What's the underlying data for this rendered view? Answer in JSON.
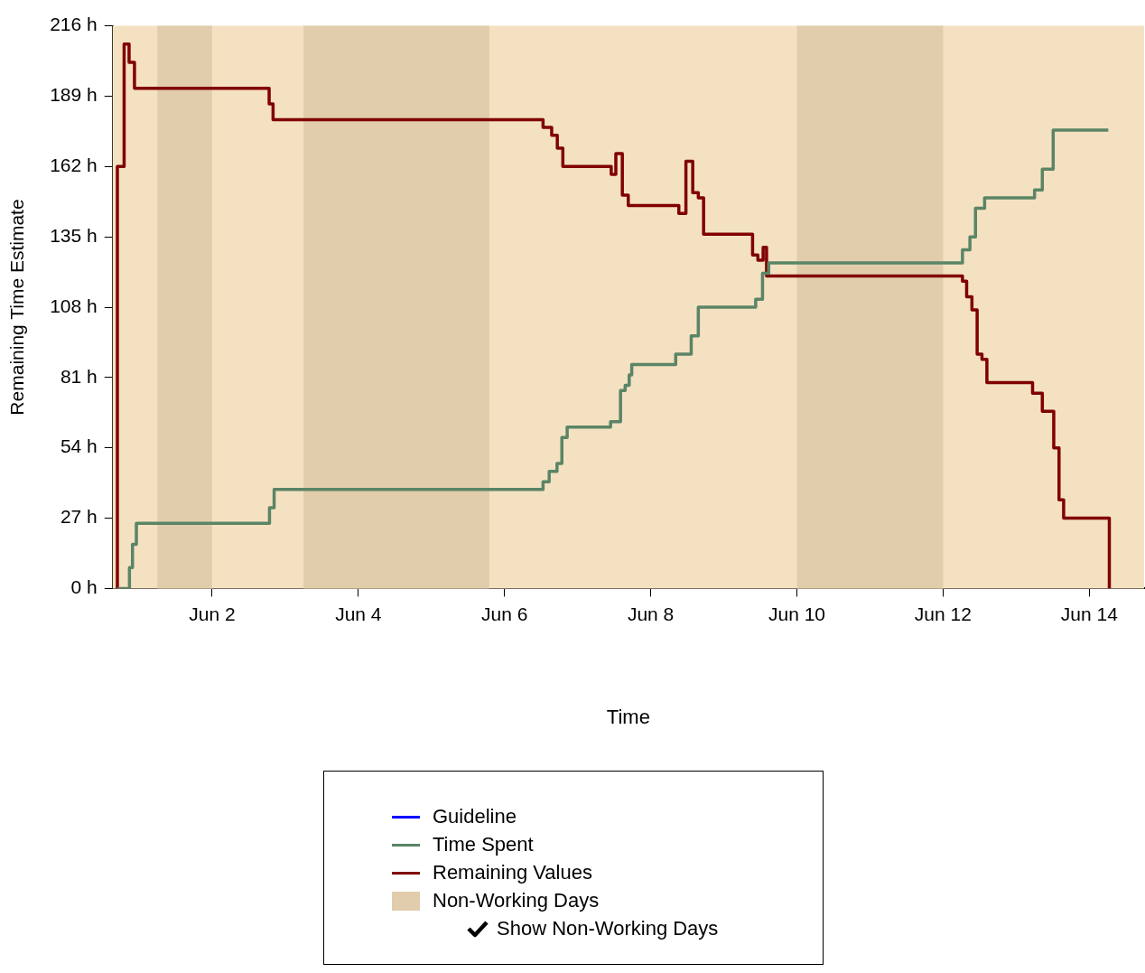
{
  "chart_data": {
    "type": "line",
    "xlabel": "Time",
    "ylabel": "Remaining Time Estimate",
    "xlim": [
      "--05-31T15:20",
      "--06-14T18:00"
    ],
    "xticks": [
      {
        "value": "--06-02",
        "label": "Jun 2"
      },
      {
        "value": "--06-04",
        "label": "Jun 4"
      },
      {
        "value": "--06-06",
        "label": "Jun 6"
      },
      {
        "value": "--06-08",
        "label": "Jun 8"
      },
      {
        "value": "--06-10",
        "label": "Jun 10"
      },
      {
        "value": "--06-12",
        "label": "Jun 12"
      },
      {
        "value": "--06-14",
        "label": "Jun 14"
      }
    ],
    "ylim": [
      0,
      216
    ],
    "yticks": [
      {
        "value": 0,
        "label": "0 h"
      },
      {
        "value": 27,
        "label": "27 h"
      },
      {
        "value": 54,
        "label": "54 h"
      },
      {
        "value": 81,
        "label": "81 h"
      },
      {
        "value": 108,
        "label": "108 h"
      },
      {
        "value": 135,
        "label": "135 h"
      },
      {
        "value": 162,
        "label": "162 h"
      },
      {
        "value": 189,
        "label": "189 h"
      },
      {
        "value": 216,
        "label": "216 h"
      }
    ],
    "legend": "bottom",
    "marker": "none",
    "bands": [
      {
        "axis": "x",
        "from": "--06-01T06:00",
        "to": "--06-02T00:00",
        "label": "Non-Working Days",
        "color": "#e1cdab"
      },
      {
        "axis": "x",
        "from": "--06-03T06:00",
        "to": "--06-05T19:00",
        "color": "#e1cdab"
      },
      {
        "axis": "x",
        "from": "--06-10T00:00",
        "to": "--06-12T00:00",
        "color": "#e1cdab"
      }
    ],
    "annotations": [
      "Show Non-Working Days"
    ],
    "series": [
      {
        "name": "Guideline",
        "type": "step",
        "color": "#0000ff"
      },
      {
        "name": "Time Spent",
        "type": "step",
        "color": "#5a8566",
        "x": [
          "--05-31T16:53",
          "--05-31T20:51",
          "--05-31T21:51",
          "--05-31T23:07",
          "--06-02T18:50",
          "--06-02T20:21",
          "--06-06T12:39",
          "--06-06T14:40",
          "--06-06T17:14",
          "--06-06T18:50",
          "--06-06T20:34",
          "--06-07T10:49",
          "--06-07T14:05",
          "--06-07T15:37",
          "--06-07T16:56",
          "--06-07T17:46",
          "--06-08T08:12",
          "--06-08T13:18",
          "--06-08T15:38",
          "--06-09T10:28",
          "--06-09T12:43",
          "--06-09T14:44",
          "--06-12T06:22",
          "--06-12T08:49",
          "--06-12T10:38",
          "--06-12T13:38",
          "--06-13T06:02",
          "--06-13T08:35",
          "--06-13T12:09",
          "--06-14T06:15"
        ],
        "values": [
          0,
          8,
          17,
          25,
          31,
          38,
          41,
          45,
          48,
          58,
          62,
          64,
          76,
          78,
          82,
          86,
          90,
          97,
          108,
          111,
          121,
          125,
          130,
          135,
          146,
          150,
          153,
          161,
          176,
          176
        ]
      },
      {
        "name": "Remaining Values",
        "type": "step",
        "color": "#800000",
        "x": [
          "--05-31T16:53",
          "--05-31T16:53",
          "--05-31T19:06",
          "--05-31T20:44",
          "--05-31T22:30",
          "--06-02T18:43",
          "--06-02T20:00",
          "--06-06T12:39",
          "--06-06T15:29",
          "--06-06T17:20",
          "--06-06T19:09",
          "--06-07T11:02",
          "--06-07T12:33",
          "--06-07T14:41",
          "--06-07T16:38",
          "--06-08T09:14",
          "--06-08T11:34",
          "--06-08T13:48",
          "--06-08T15:38",
          "--06-08T17:22",
          "--06-09T09:27",
          "--06-09T11:11",
          "--06-09T12:55",
          "--06-09T14:02",
          "--06-12T06:22",
          "--06-12T07:44",
          "--06-12T09:28",
          "--06-12T11:11",
          "--06-12T12:46",
          "--06-12T14:23",
          "--06-13T05:23",
          "--06-13T08:35",
          "--06-13T12:20",
          "--06-13T14:04",
          "--06-13T15:35",
          "--06-14T06:35"
        ],
        "values": [
          0,
          162,
          209,
          202,
          192,
          186,
          180,
          177,
          174,
          169,
          162,
          159,
          167,
          151,
          147,
          144,
          164,
          152,
          150,
          136,
          128,
          126,
          131,
          120,
          118,
          112,
          107,
          90,
          88,
          79,
          75,
          68,
          54,
          34,
          27,
          0
        ]
      }
    ]
  }
}
